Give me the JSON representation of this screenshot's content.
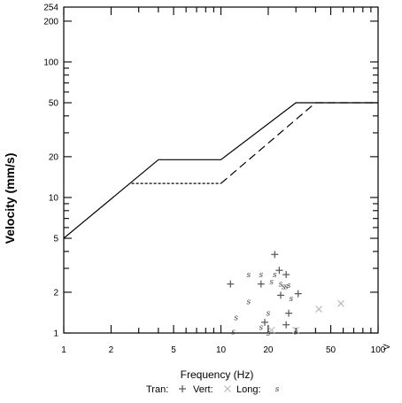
{
  "chart_data": {
    "type": "scatter",
    "title": "",
    "xlabel": "Frequency (Hz)",
    "ylabel": "Velocity (mm/s)",
    "x_scale": "log",
    "y_scale": "log",
    "xlim": [
      1,
      100
    ],
    "ylim": [
      1,
      254
    ],
    "x_tick_labels": [
      {
        "value": 1,
        "label": "1"
      },
      {
        "value": 2,
        "label": "2"
      },
      {
        "value": 5,
        "label": "5"
      },
      {
        "value": 10,
        "label": "10"
      },
      {
        "value": 20,
        "label": "20"
      },
      {
        "value": 50,
        "label": "50"
      },
      {
        "value": 100,
        "label": "100"
      }
    ],
    "x_end_label": "V",
    "y_tick_labels": [
      {
        "value": 1,
        "label": "1"
      },
      {
        "value": 2,
        "label": "2"
      },
      {
        "value": 5,
        "label": "5"
      },
      {
        "value": 10,
        "label": "10"
      },
      {
        "value": 20,
        "label": "20"
      },
      {
        "value": 50,
        "label": "50"
      },
      {
        "value": 100,
        "label": "100"
      },
      {
        "value": 200,
        "label": "200"
      },
      {
        "value": 254,
        "label": "254"
      }
    ],
    "grid": false,
    "legend_position": "bottom",
    "limit_lines": [
      {
        "style": "solid",
        "points": [
          [
            1,
            5
          ],
          [
            4,
            19
          ],
          [
            10,
            19
          ],
          [
            30,
            50
          ],
          [
            100,
            50
          ]
        ]
      },
      {
        "style": "dotted",
        "points": [
          [
            2.7,
            12.7
          ],
          [
            10,
            12.7
          ]
        ]
      },
      {
        "style": "dashed",
        "points": [
          [
            10,
            12.7
          ],
          [
            40,
            50
          ],
          [
            100,
            50
          ]
        ]
      }
    ],
    "series": [
      {
        "name": "Tran:",
        "marker": "plus",
        "points": [
          [
            11.5,
            2.3
          ],
          [
            18,
            2.3
          ],
          [
            19,
            1.2
          ],
          [
            22,
            3.8
          ],
          [
            23.5,
            2.9
          ],
          [
            24,
            1.9
          ],
          [
            26,
            2.7
          ],
          [
            27,
            1.4
          ],
          [
            31,
            1.95
          ],
          [
            26,
            1.15
          ]
        ]
      },
      {
        "name": "Vert:",
        "marker": "x",
        "points": [
          [
            42,
            1.5
          ],
          [
            58,
            1.65
          ],
          [
            21,
            1.05
          ],
          [
            30,
            1.05
          ]
        ]
      },
      {
        "name": "Long:",
        "marker": "s",
        "points": [
          [
            12.5,
            1.3
          ],
          [
            15,
            1.7
          ],
          [
            15,
            2.7
          ],
          [
            18,
            2.7
          ],
          [
            18,
            1.1
          ],
          [
            20,
            1.4
          ],
          [
            21,
            2.4
          ],
          [
            22,
            2.7
          ],
          [
            24,
            2.3
          ],
          [
            25,
            2.2
          ],
          [
            26,
            2.2
          ],
          [
            27,
            2.25
          ],
          [
            28,
            1.8
          ],
          [
            12,
            1.02
          ],
          [
            30,
            1.02
          ],
          [
            20,
            1.0
          ]
        ]
      }
    ]
  }
}
